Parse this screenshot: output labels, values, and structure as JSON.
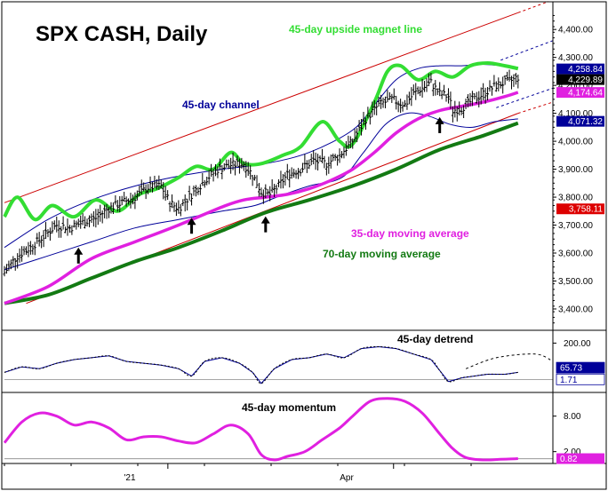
{
  "chart_data": [
    {
      "panel": "price",
      "type": "line",
      "title": "SPX CASH, Daily",
      "x_labels": [
        {
          "label": "'21",
          "date": "2021-01-04"
        },
        {
          "label": "Apr",
          "date": "2021-04-01"
        }
      ],
      "date_range": [
        "2020-11-02",
        "2021-05-19"
      ],
      "yticks": [
        "4,400.00",
        "4,300.00",
        "4,200.00",
        "4,100.00",
        "4,000.00",
        "3,900.00",
        "3,800.00",
        "3,700.00",
        "3,600.00",
        "3,500.00",
        "3,400.00"
      ],
      "ylim": [
        3330,
        4480
      ],
      "annotations": {
        "magnet": "45-day upside magnet line",
        "channel": "45-day channel",
        "ma35": "35-day moving average",
        "ma70": "70-day moving average"
      },
      "series_colors": {
        "price": "#000000",
        "magnet_line": "#33dd33",
        "channel_bands": "#000099",
        "ma35": "#e020e0",
        "ma70": "#137a13",
        "outer_channel": "#cc0000",
        "projection": "#000099"
      },
      "price_start": 3530,
      "price_points": [
        [
          0,
          3530
        ],
        [
          6,
          3590
        ],
        [
          12,
          3620
        ],
        [
          18,
          3660
        ],
        [
          24,
          3700
        ],
        [
          30,
          3690
        ],
        [
          36,
          3710
        ],
        [
          42,
          3725
        ],
        [
          48,
          3760
        ],
        [
          54,
          3780
        ],
        [
          60,
          3800
        ],
        [
          66,
          3835
        ],
        [
          72,
          3840
        ],
        [
          76,
          3780
        ],
        [
          80,
          3760
        ],
        [
          86,
          3810
        ],
        [
          92,
          3860
        ],
        [
          98,
          3900
        ],
        [
          104,
          3915
        ],
        [
          110,
          3920
        ],
        [
          114,
          3880
        ],
        [
          118,
          3820
        ],
        [
          122,
          3810
        ],
        [
          126,
          3840
        ],
        [
          130,
          3880
        ],
        [
          136,
          3900
        ],
        [
          142,
          3930
        ],
        [
          148,
          3920
        ],
        [
          154,
          3950
        ],
        [
          160,
          4000
        ],
        [
          166,
          4080
        ],
        [
          172,
          4130
        ],
        [
          178,
          4150
        ],
        [
          184,
          4130
        ],
        [
          188,
          4170
        ],
        [
          192,
          4190
        ],
        [
          196,
          4210
        ],
        [
          200,
          4170
        ],
        [
          204,
          4160
        ],
        [
          206,
          4110
        ],
        [
          210,
          4120
        ],
        [
          214,
          4140
        ],
        [
          218,
          4160
        ],
        [
          222,
          4180
        ],
        [
          226,
          4200
        ],
        [
          230,
          4210
        ],
        [
          234,
          4220
        ],
        [
          236,
          4230
        ]
      ],
      "ma35_points": [
        [
          0,
          3420
        ],
        [
          20,
          3480
        ],
        [
          40,
          3580
        ],
        [
          60,
          3640
        ],
        [
          80,
          3700
        ],
        [
          100,
          3765
        ],
        [
          110,
          3790
        ],
        [
          120,
          3800
        ],
        [
          130,
          3810
        ],
        [
          140,
          3830
        ],
        [
          150,
          3860
        ],
        [
          160,
          3900
        ],
        [
          170,
          3960
        ],
        [
          180,
          4030
        ],
        [
          190,
          4080
        ],
        [
          200,
          4110
        ],
        [
          210,
          4125
        ],
        [
          220,
          4140
        ],
        [
          230,
          4160
        ],
        [
          236,
          4175
        ]
      ],
      "ma70_points": [
        [
          0,
          3420
        ],
        [
          20,
          3450
        ],
        [
          40,
          3510
        ],
        [
          60,
          3570
        ],
        [
          80,
          3620
        ],
        [
          100,
          3680
        ],
        [
          120,
          3745
        ],
        [
          140,
          3790
        ],
        [
          160,
          3840
        ],
        [
          180,
          3900
        ],
        [
          200,
          3970
        ],
        [
          220,
          4020
        ],
        [
          236,
          4065
        ]
      ],
      "magnet_points": [
        [
          0,
          3730
        ],
        [
          6,
          3800
        ],
        [
          14,
          3720
        ],
        [
          22,
          3770
        ],
        [
          32,
          3730
        ],
        [
          42,
          3790
        ],
        [
          52,
          3750
        ],
        [
          62,
          3810
        ],
        [
          70,
          3830
        ],
        [
          80,
          3870
        ],
        [
          88,
          3910
        ],
        [
          96,
          3900
        ],
        [
          104,
          3960
        ],
        [
          110,
          3920
        ],
        [
          118,
          3920
        ],
        [
          128,
          3950
        ],
        [
          136,
          3980
        ],
        [
          146,
          4070
        ],
        [
          154,
          4000
        ],
        [
          160,
          3990
        ],
        [
          170,
          4140
        ],
        [
          176,
          4250
        ],
        [
          182,
          4270
        ],
        [
          190,
          4220
        ],
        [
          198,
          4250
        ],
        [
          206,
          4230
        ],
        [
          214,
          4270
        ],
        [
          222,
          4280
        ],
        [
          230,
          4270
        ],
        [
          236,
          4260
        ]
      ],
      "upper_band_points": [
        [
          0,
          3620
        ],
        [
          20,
          3720
        ],
        [
          40,
          3790
        ],
        [
          60,
          3840
        ],
        [
          80,
          3875
        ],
        [
          100,
          3900
        ],
        [
          120,
          3920
        ],
        [
          140,
          3960
        ],
        [
          160,
          4040
        ],
        [
          170,
          4130
        ],
        [
          180,
          4220
        ],
        [
          190,
          4260
        ],
        [
          200,
          4270
        ],
        [
          210,
          4270
        ],
        [
          220,
          4275
        ],
        [
          236,
          4265
        ]
      ],
      "lower_band_points": [
        [
          0,
          3540
        ],
        [
          20,
          3590
        ],
        [
          40,
          3640
        ],
        [
          60,
          3690
        ],
        [
          80,
          3720
        ],
        [
          100,
          3750
        ],
        [
          115,
          3770
        ],
        [
          125,
          3800
        ],
        [
          140,
          3840
        ],
        [
          155,
          3870
        ],
        [
          165,
          3960
        ],
        [
          175,
          4060
        ],
        [
          185,
          4100
        ],
        [
          195,
          4090
        ],
        [
          205,
          4060
        ],
        [
          215,
          4050
        ],
        [
          225,
          4070
        ],
        [
          236,
          4080
        ]
      ],
      "outer_upper_line": [
        [
          0,
          3780
        ],
        [
          236,
          4460
        ]
      ],
      "outer_lower_line": [
        [
          10,
          3420
        ],
        [
          236,
          4100
        ]
      ],
      "projections": [
        {
          "style": "dashed",
          "color": "#cc0000",
          "points": [
            [
              236,
              4460
            ],
            [
              250,
              4500
            ]
          ]
        },
        {
          "style": "dashed",
          "color": "#cc0000",
          "points": [
            [
              236,
              4100
            ],
            [
              252,
              4140
            ]
          ]
        },
        {
          "style": "dashed",
          "color": "#000099",
          "points": [
            [
              228,
              4290
            ],
            [
              252,
              4360
            ]
          ]
        },
        {
          "style": "dashed",
          "color": "#000099",
          "points": [
            [
              226,
              4120
            ],
            [
              252,
              4190
            ]
          ]
        }
      ],
      "arrows_at_x": [
        34,
        86,
        120,
        200
      ],
      "value_boxes": [
        {
          "label": "4,258.84",
          "value": 4258.84,
          "bg": "#000099",
          "fg": "#ffffff"
        },
        {
          "label": "4,229.89",
          "value": 4229.89,
          "bg": "#000000",
          "fg": "#ffffff"
        },
        {
          "label": "4,174.64",
          "value": 4174.64,
          "bg": "#e020e0",
          "fg": "#ffffff"
        },
        {
          "label": "4,071.32",
          "value": 4071.32,
          "bg": "#000099",
          "fg": "#ffffff"
        },
        {
          "label": "3,758.11",
          "value": 3758.11,
          "bg": "#dd0000",
          "fg": "#ffffff"
        }
      ]
    },
    {
      "panel": "detrend",
      "type": "line",
      "annotation": "45-day detrend",
      "yticks": [
        "200.00"
      ],
      "zero_line_at": 0,
      "ylim": [
        -60,
        270
      ],
      "series_colors": {
        "detrend": "#000099",
        "detrend_smooth": "#000000"
      },
      "points": [
        [
          0,
          40
        ],
        [
          8,
          70
        ],
        [
          16,
          60
        ],
        [
          24,
          90
        ],
        [
          32,
          110
        ],
        [
          40,
          120
        ],
        [
          48,
          130
        ],
        [
          56,
          100
        ],
        [
          64,
          90
        ],
        [
          72,
          80
        ],
        [
          80,
          60
        ],
        [
          86,
          20
        ],
        [
          92,
          100
        ],
        [
          100,
          120
        ],
        [
          108,
          90
        ],
        [
          114,
          40
        ],
        [
          118,
          -20
        ],
        [
          124,
          60
        ],
        [
          132,
          110
        ],
        [
          140,
          120
        ],
        [
          148,
          140
        ],
        [
          156,
          120
        ],
        [
          164,
          170
        ],
        [
          172,
          180
        ],
        [
          180,
          170
        ],
        [
          188,
          140
        ],
        [
          196,
          110
        ],
        [
          200,
          50
        ],
        [
          204,
          -10
        ],
        [
          210,
          10
        ],
        [
          216,
          20
        ],
        [
          222,
          30
        ],
        [
          230,
          30
        ],
        [
          236,
          40
        ]
      ],
      "projection": [
        [
          212,
          60
        ],
        [
          226,
          120
        ],
        [
          244,
          140
        ],
        [
          252,
          100
        ]
      ],
      "value_boxes": [
        {
          "label": "65.73",
          "value": 65.73,
          "bg": "#000099",
          "fg": "#ffffff"
        },
        {
          "label": "1.71",
          "value": 1.71,
          "bg": "#ffffff",
          "fg": "#000099"
        }
      ]
    },
    {
      "panel": "momentum",
      "type": "line",
      "annotation": "45-day momentum",
      "yticks": [
        "8.00",
        "2.00"
      ],
      "ylim": [
        0,
        12
      ],
      "series_colors": {
        "momentum": "#e020e0"
      },
      "points": [
        [
          0,
          3.5
        ],
        [
          8,
          7.0
        ],
        [
          16,
          8.5
        ],
        [
          24,
          8.0
        ],
        [
          32,
          6.5
        ],
        [
          40,
          7.0
        ],
        [
          48,
          6.0
        ],
        [
          56,
          4.0
        ],
        [
          64,
          4.5
        ],
        [
          72,
          4.5
        ],
        [
          80,
          3.8
        ],
        [
          88,
          3.5
        ],
        [
          96,
          5.0
        ],
        [
          104,
          6.5
        ],
        [
          112,
          5.0
        ],
        [
          118,
          1.5
        ],
        [
          124,
          0.6
        ],
        [
          130,
          1.2
        ],
        [
          138,
          2.0
        ],
        [
          146,
          4.0
        ],
        [
          154,
          6.0
        ],
        [
          160,
          8.0
        ],
        [
          168,
          10.5
        ],
        [
          176,
          11.0
        ],
        [
          184,
          10.5
        ],
        [
          192,
          8.5
        ],
        [
          200,
          5.0
        ],
        [
          206,
          2.5
        ],
        [
          212,
          1.0
        ],
        [
          220,
          0.6
        ],
        [
          228,
          0.7
        ],
        [
          236,
          0.82
        ]
      ],
      "value_boxes": [
        {
          "label": "0.82",
          "value": 0.82,
          "bg": "#e020e0",
          "fg": "#ffffff"
        }
      ]
    }
  ]
}
